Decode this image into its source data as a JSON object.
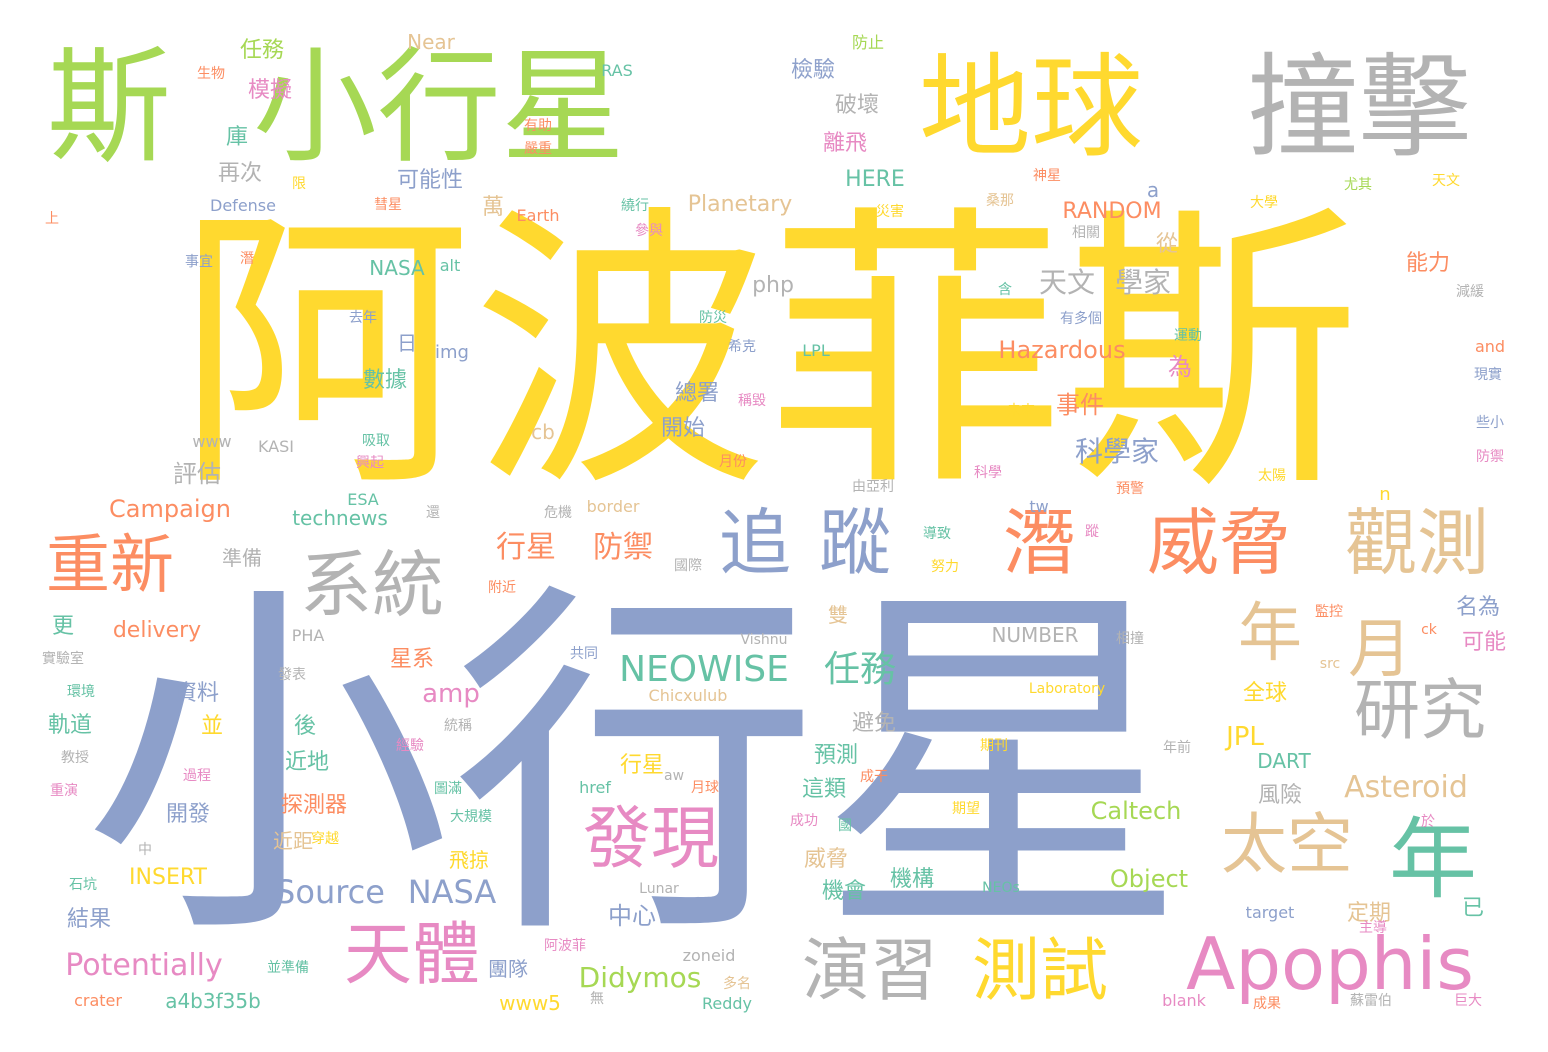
{
  "palette": {
    "yellow": "#ffd92f",
    "blue": "#8da0cb",
    "green": "#a6d854",
    "gray": "#b3b3b3",
    "orange": "#fc8d62",
    "pink": "#e78ac3",
    "teal": "#66c2a5",
    "tan": "#e5c494"
  },
  "words": [
    {
      "text": "阿波菲斯",
      "color": "yellow"
    },
    {
      "text": "小行星",
      "color": "blue"
    },
    {
      "text": "斯",
      "color": "green"
    },
    {
      "text": "小行星",
      "color": "green"
    },
    {
      "text": "地球",
      "color": "yellow"
    },
    {
      "text": "撞擊",
      "color": "gray"
    },
    {
      "text": "潛",
      "color": "orange"
    },
    {
      "text": "威脅",
      "color": "orange"
    },
    {
      "text": "觀測",
      "color": "tan"
    },
    {
      "text": "追",
      "color": "blue"
    },
    {
      "text": "蹤",
      "color": "blue"
    },
    {
      "text": "系統",
      "color": "gray"
    },
    {
      "text": "重新",
      "color": "orange"
    },
    {
      "text": "年",
      "color": "tan"
    },
    {
      "text": "月",
      "color": "tan"
    },
    {
      "text": "研究",
      "color": "gray"
    },
    {
      "text": "發現",
      "color": "pink"
    },
    {
      "text": "太空",
      "color": "tan"
    },
    {
      "text": "年",
      "color": "teal"
    },
    {
      "text": "天體",
      "color": "pink"
    },
    {
      "text": "演習",
      "color": "gray"
    },
    {
      "text": "測試",
      "color": "yellow"
    },
    {
      "text": "Apophis",
      "color": "pink"
    },
    {
      "text": "NEOWISE",
      "color": "teal"
    },
    {
      "text": "任務",
      "color": "teal"
    },
    {
      "text": "Source",
      "color": "blue"
    },
    {
      "text": "NASA",
      "color": "blue"
    },
    {
      "text": "行星",
      "color": "orange"
    },
    {
      "text": "防禦",
      "color": "orange"
    },
    {
      "text": "天文",
      "color": "gray"
    },
    {
      "text": "學家",
      "color": "gray"
    },
    {
      "text": "科學家",
      "color": "blue"
    },
    {
      "text": "事件",
      "color": "orange"
    },
    {
      "text": "Hazardous",
      "color": "orange"
    },
    {
      "text": "Potentially",
      "color": "pink"
    },
    {
      "text": "Didymos",
      "color": "green"
    },
    {
      "text": "Asteroid",
      "color": "tan"
    },
    {
      "text": "JPL",
      "color": "yellow"
    },
    {
      "text": "Caltech",
      "color": "green"
    },
    {
      "text": "Object",
      "color": "green"
    },
    {
      "text": "Campaign",
      "color": "orange"
    },
    {
      "text": "delivery",
      "color": "orange"
    },
    {
      "text": "Planetary",
      "color": "tan"
    },
    {
      "text": "RANDOM",
      "color": "orange"
    },
    {
      "text": "HERE",
      "color": "teal"
    },
    {
      "text": "NUMBER",
      "color": "gray"
    },
    {
      "text": "technews",
      "color": "teal"
    },
    {
      "text": "amp",
      "color": "pink"
    },
    {
      "text": "php",
      "color": "gray"
    },
    {
      "text": "評估",
      "color": "gray"
    },
    {
      "text": "中心",
      "color": "blue"
    },
    {
      "text": "INSERT",
      "color": "yellow"
    },
    {
      "text": "a4b3f35b",
      "color": "teal"
    },
    {
      "text": "www5",
      "color": "yellow"
    },
    {
      "text": "結果",
      "color": "blue"
    },
    {
      "text": "行星",
      "color": "yellow"
    },
    {
      "text": "全球",
      "color": "yellow"
    },
    {
      "text": "風險",
      "color": "gray"
    },
    {
      "text": "DART",
      "color": "teal"
    },
    {
      "text": "機構",
      "color": "teal"
    },
    {
      "text": "機會",
      "color": "teal"
    },
    {
      "text": "威脅",
      "color": "tan"
    },
    {
      "text": "探測器",
      "color": "orange"
    },
    {
      "text": "近地",
      "color": "teal"
    },
    {
      "text": "近距",
      "color": "tan"
    },
    {
      "text": "飛掠",
      "color": "yellow"
    },
    {
      "text": "開發",
      "color": "blue"
    },
    {
      "text": "軌道",
      "color": "teal"
    },
    {
      "text": "資料",
      "color": "blue"
    },
    {
      "text": "更",
      "color": "teal"
    },
    {
      "text": "並",
      "color": "yellow"
    },
    {
      "text": "後",
      "color": "teal"
    },
    {
      "text": "星系",
      "color": "orange"
    },
    {
      "text": "避免",
      "color": "gray"
    },
    {
      "text": "預測",
      "color": "teal"
    },
    {
      "text": "這類",
      "color": "teal"
    },
    {
      "text": "團隊",
      "color": "blue"
    },
    {
      "text": "數據",
      "color": "teal"
    },
    {
      "text": "總署",
      "color": "blue"
    },
    {
      "text": "開始",
      "color": "blue"
    },
    {
      "text": "為",
      "color": "pink"
    },
    {
      "text": "從",
      "color": "tan"
    },
    {
      "text": "能力",
      "color": "orange"
    },
    {
      "text": "名為",
      "color": "blue"
    },
    {
      "text": "可能",
      "color": "pink"
    },
    {
      "text": "定期",
      "color": "tan"
    },
    {
      "text": "已",
      "color": "teal"
    },
    {
      "text": "可能性",
      "color": "blue"
    },
    {
      "text": "再次",
      "color": "gray"
    },
    {
      "text": "庫",
      "color": "teal"
    },
    {
      "text": "模擬",
      "color": "pink"
    },
    {
      "text": "任務",
      "color": "green"
    },
    {
      "text": "檢驗",
      "color": "blue"
    },
    {
      "text": "破壞",
      "color": "gray"
    },
    {
      "text": "離飛",
      "color": "pink"
    },
    {
      "text": "NASA",
      "color": "teal"
    },
    {
      "text": "萬",
      "color": "tan"
    },
    {
      "text": "a",
      "color": "blue"
    },
    {
      "text": "日",
      "color": "blue"
    },
    {
      "text": "img",
      "color": "blue"
    },
    {
      "text": "準備",
      "color": "gray"
    },
    {
      "text": "雙",
      "color": "tan"
    },
    {
      "text": "cb",
      "color": "tan"
    },
    {
      "text": "tw",
      "color": "blue"
    },
    {
      "text": "n",
      "color": "yellow"
    },
    {
      "text": "Near",
      "color": "tan"
    },
    {
      "text": "防止",
      "color": "green"
    },
    {
      "text": "生物",
      "color": "orange"
    },
    {
      "text": "RAS",
      "color": "teal"
    },
    {
      "text": "有助",
      "color": "orange"
    },
    {
      "text": "嚴重",
      "color": "orange"
    },
    {
      "text": "神星",
      "color": "orange"
    },
    {
      "text": "Defense",
      "color": "blue"
    },
    {
      "text": "限",
      "color": "yellow"
    },
    {
      "text": "彗星",
      "color": "orange"
    },
    {
      "text": "Earth",
      "color": "orange"
    },
    {
      "text": "繞行",
      "color": "teal"
    },
    {
      "text": "參與",
      "color": "pink"
    },
    {
      "text": "災害",
      "color": "yellow"
    },
    {
      "text": "桑那",
      "color": "tan"
    },
    {
      "text": "大學",
      "color": "yellow"
    },
    {
      "text": "尤其",
      "color": "green"
    },
    {
      "text": "天文",
      "color": "yellow"
    },
    {
      "text": "上",
      "color": "orange"
    },
    {
      "text": "相關",
      "color": "gray"
    },
    {
      "text": "事宜",
      "color": "blue"
    },
    {
      "text": "潛",
      "color": "orange"
    },
    {
      "text": "alt",
      "color": "teal"
    },
    {
      "text": "含",
      "color": "teal"
    },
    {
      "text": "去年",
      "color": "blue"
    },
    {
      "text": "防災",
      "color": "teal"
    },
    {
      "text": "有多個",
      "color": "blue"
    },
    {
      "text": "減緩",
      "color": "gray"
    },
    {
      "text": "希克",
      "color": "blue"
    },
    {
      "text": "LPL",
      "color": "teal"
    },
    {
      "text": "運動",
      "color": "teal"
    },
    {
      "text": "and",
      "color": "orange"
    },
    {
      "text": "現實",
      "color": "blue"
    },
    {
      "text": "稱毀",
      "color": "pink"
    },
    {
      "text": "未來",
      "color": "yellow"
    },
    {
      "text": "www",
      "color": "gray"
    },
    {
      "text": "KASI",
      "color": "gray"
    },
    {
      "text": "吸取",
      "color": "teal"
    },
    {
      "text": "興起",
      "color": "pink"
    },
    {
      "text": "月份",
      "color": "orange"
    },
    {
      "text": "些小",
      "color": "blue"
    },
    {
      "text": "防禦",
      "color": "pink"
    },
    {
      "text": "科學",
      "color": "pink"
    },
    {
      "text": "由亞利",
      "color": "gray"
    },
    {
      "text": "ESA",
      "color": "teal"
    },
    {
      "text": "還",
      "color": "gray"
    },
    {
      "text": "危機",
      "color": "gray"
    },
    {
      "text": "border",
      "color": "tan"
    },
    {
      "text": "預警",
      "color": "orange"
    },
    {
      "text": "太陽",
      "color": "yellow"
    },
    {
      "text": "導致",
      "color": "teal"
    },
    {
      "text": "蹤",
      "color": "pink"
    },
    {
      "text": "努力",
      "color": "yellow"
    },
    {
      "text": "國際",
      "color": "gray"
    },
    {
      "text": "附近",
      "color": "orange"
    },
    {
      "text": "PHA",
      "color": "gray"
    },
    {
      "text": "Vishnu",
      "color": "gray"
    },
    {
      "text": "相撞",
      "color": "gray"
    },
    {
      "text": "監控",
      "color": "orange"
    },
    {
      "text": "ck",
      "color": "orange"
    },
    {
      "text": "實驗室",
      "color": "gray"
    },
    {
      "text": "環境",
      "color": "teal"
    },
    {
      "text": "共同",
      "color": "blue"
    },
    {
      "text": "發表",
      "color": "gray"
    },
    {
      "text": "Chicxulub",
      "color": "tan"
    },
    {
      "text": "Laboratory",
      "color": "yellow"
    },
    {
      "text": "src",
      "color": "tan"
    },
    {
      "text": "統稱",
      "color": "gray"
    },
    {
      "text": "教授",
      "color": "gray"
    },
    {
      "text": "經驗",
      "color": "pink"
    },
    {
      "text": "期刊",
      "color": "yellow"
    },
    {
      "text": "年前",
      "color": "gray"
    },
    {
      "text": "過程",
      "color": "pink"
    },
    {
      "text": "aw",
      "color": "gray"
    },
    {
      "text": "成干",
      "color": "orange"
    },
    {
      "text": "重演",
      "color": "pink"
    },
    {
      "text": "圖滿",
      "color": "teal"
    },
    {
      "text": "href",
      "color": "teal"
    },
    {
      "text": "月球",
      "color": "orange"
    },
    {
      "text": "期望",
      "color": "yellow"
    },
    {
      "text": "大規模",
      "color": "teal"
    },
    {
      "text": "成功",
      "color": "pink"
    },
    {
      "text": "國",
      "color": "teal"
    },
    {
      "text": "於",
      "color": "pink"
    },
    {
      "text": "中",
      "color": "gray"
    },
    {
      "text": "穿越",
      "color": "yellow"
    },
    {
      "text": "石坑",
      "color": "teal"
    },
    {
      "text": "Lunar",
      "color": "gray"
    },
    {
      "text": "NEOs",
      "color": "teal"
    },
    {
      "text": "target",
      "color": "blue"
    },
    {
      "text": "主導",
      "color": "pink"
    },
    {
      "text": "阿波菲",
      "color": "pink"
    },
    {
      "text": "zoneid",
      "color": "gray"
    },
    {
      "text": "並準備",
      "color": "teal"
    },
    {
      "text": "多名",
      "color": "tan"
    },
    {
      "text": "crater",
      "color": "orange"
    },
    {
      "text": "Reddy",
      "color": "teal"
    },
    {
      "text": "無",
      "color": "gray"
    },
    {
      "text": "blank",
      "color": "pink"
    },
    {
      "text": "成果",
      "color": "orange"
    },
    {
      "text": "蘇雷伯",
      "color": "gray"
    },
    {
      "text": "巨大",
      "color": "pink"
    }
  ]
}
